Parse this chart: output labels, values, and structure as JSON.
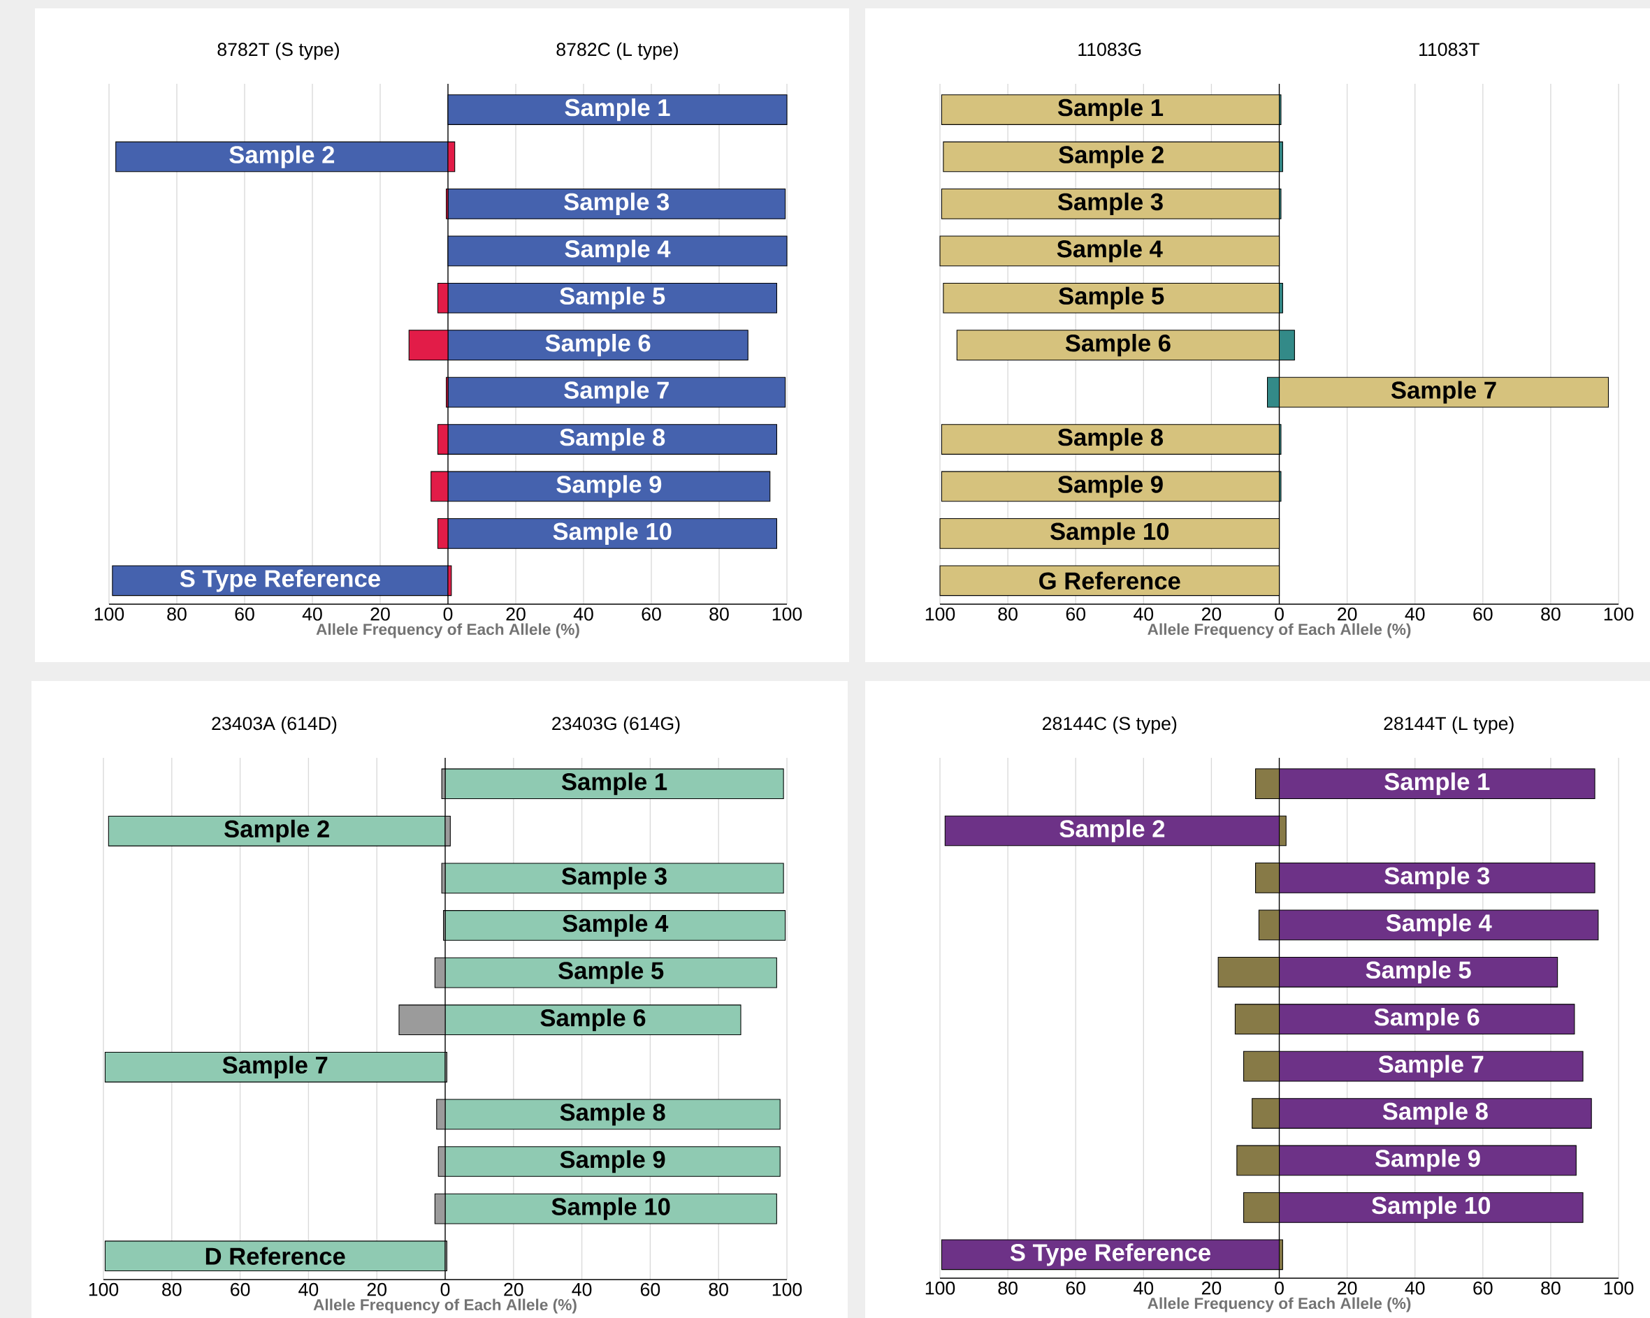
{
  "chart_data": [
    {
      "type": "bar",
      "orientation": "horizontal",
      "stacked": true,
      "grid": "x",
      "xlabel": "Allele Frequency of Each Allele (%)",
      "annotations": [
        "8782T (S type)",
        "8782C (L type)"
      ],
      "categories": [
        "Sample 1",
        "Sample 2",
        "Sample 3",
        "Sample 4",
        "Sample 5",
        "Sample 6",
        "Sample 7",
        "Sample 8",
        "Sample 9",
        "Sample 10",
        "S Type Reference"
      ],
      "series": [
        {
          "color": "#4562ae",
          "values": [
            100,
            -98,
            99.5,
            100,
            97,
            88.5,
            99.5,
            97,
            95,
            97,
            -99
          ]
        },
        {
          "color": "#e21c48",
          "values": [
            null,
            2,
            -0.5,
            null,
            -3,
            -11.5,
            -0.5,
            -3,
            -5,
            -3,
            1
          ]
        }
      ],
      "xlim": [
        -100,
        100
      ],
      "xticks": [
        {
          "value": -100,
          "label": "100"
        },
        {
          "value": -80,
          "label": "80"
        },
        {
          "value": -60,
          "label": "60"
        },
        {
          "value": -40,
          "label": "40"
        },
        {
          "value": -20,
          "label": "20"
        },
        0,
        20,
        40,
        60,
        80,
        100
      ]
    },
    {
      "type": "bar",
      "orientation": "horizontal",
      "stacked": true,
      "grid": "x",
      "xlabel": "Allele Frequency of Each Allele (%)",
      "annotations": [
        "11083G",
        "11083T"
      ],
      "categories": [
        "Sample 1",
        "Sample 2",
        "Sample 3",
        "Sample 4",
        "Sample 5",
        "Sample 6",
        "Sample 7",
        "Sample 8",
        "Sample 9",
        "Sample 10",
        "G Reference"
      ],
      "series": [
        {
          "color": "#d6c27d",
          "values": [
            -99.5,
            -99,
            -99.5,
            -100,
            -99,
            -95,
            97,
            -99.5,
            -99.5,
            -100,
            -100
          ]
        },
        {
          "color": "#338a88",
          "values": [
            0.5,
            1,
            0.5,
            null,
            1,
            4.5,
            -3.5,
            0.5,
            0.5,
            null,
            null
          ]
        }
      ],
      "xlim": [
        -100,
        100
      ],
      "xticks": [
        {
          "value": -100,
          "label": "100"
        },
        {
          "value": -80,
          "label": "80"
        },
        {
          "value": -60,
          "label": "60"
        },
        {
          "value": -40,
          "label": "40"
        },
        {
          "value": -20,
          "label": "20"
        },
        0,
        20,
        40,
        60,
        80,
        100
      ]
    },
    {
      "type": "bar",
      "orientation": "horizontal",
      "stacked": true,
      "grid": "x",
      "xlabel": "Allele Frequency of Each Allele (%)",
      "annotations": [
        "23403A (614D)",
        "23403G (614G)"
      ],
      "categories": [
        "Sample 1",
        "Sample 2",
        "Sample 3",
        "Sample 4",
        "Sample 5",
        "Sample 6",
        "Sample 7",
        "Sample 8",
        "Sample 9",
        "Sample 10",
        "D Reference"
      ],
      "series": [
        {
          "color": "#8fcab2",
          "values": [
            99,
            -98.5,
            99,
            99.5,
            97,
            86.5,
            -99.5,
            98,
            98,
            97,
            -99.5
          ]
        },
        {
          "color": "#9b9b9b",
          "values": [
            -1,
            1.5,
            -1,
            -0.5,
            -3,
            -13.5,
            0.5,
            -2.5,
            -2,
            -3,
            0.5
          ]
        }
      ],
      "xlim": [
        -100,
        100
      ],
      "xticks": [
        {
          "value": -100,
          "label": "100"
        },
        {
          "value": -80,
          "label": "80"
        },
        {
          "value": -60,
          "label": "60"
        },
        {
          "value": -40,
          "label": "40"
        },
        {
          "value": -20,
          "label": "20"
        },
        0,
        20,
        40,
        60,
        80,
        100
      ]
    },
    {
      "type": "bar",
      "orientation": "horizontal",
      "stacked": true,
      "grid": "x",
      "xlabel": "Allele Frequency of Each Allele (%)",
      "annotations": [
        "28144C (S type)",
        "28144T (L type)"
      ],
      "categories": [
        "Sample 1",
        "Sample 2",
        "Sample 3",
        "Sample 4",
        "Sample 5",
        "Sample 6",
        "Sample 7",
        "Sample 8",
        "Sample 9",
        "Sample 10",
        "S Type Reference"
      ],
      "series": [
        {
          "color": "#6d3287",
          "values": [
            93,
            -98.5,
            93,
            94,
            82,
            87,
            89.5,
            92,
            87.5,
            89.5,
            -99.5
          ]
        },
        {
          "color": "#877a47",
          "values": [
            -7,
            2,
            -7,
            -6,
            -18,
            -13,
            -10.5,
            -8,
            -12.5,
            -10.5,
            1
          ]
        }
      ],
      "xlim": [
        -100,
        100
      ],
      "xticks": [
        {
          "value": -100,
          "label": "100"
        },
        {
          "value": -80,
          "label": "80"
        },
        {
          "value": -60,
          "label": "60"
        },
        {
          "value": -40,
          "label": "40"
        },
        {
          "value": -20,
          "label": "20"
        },
        0,
        20,
        40,
        60,
        80,
        100
      ]
    }
  ]
}
